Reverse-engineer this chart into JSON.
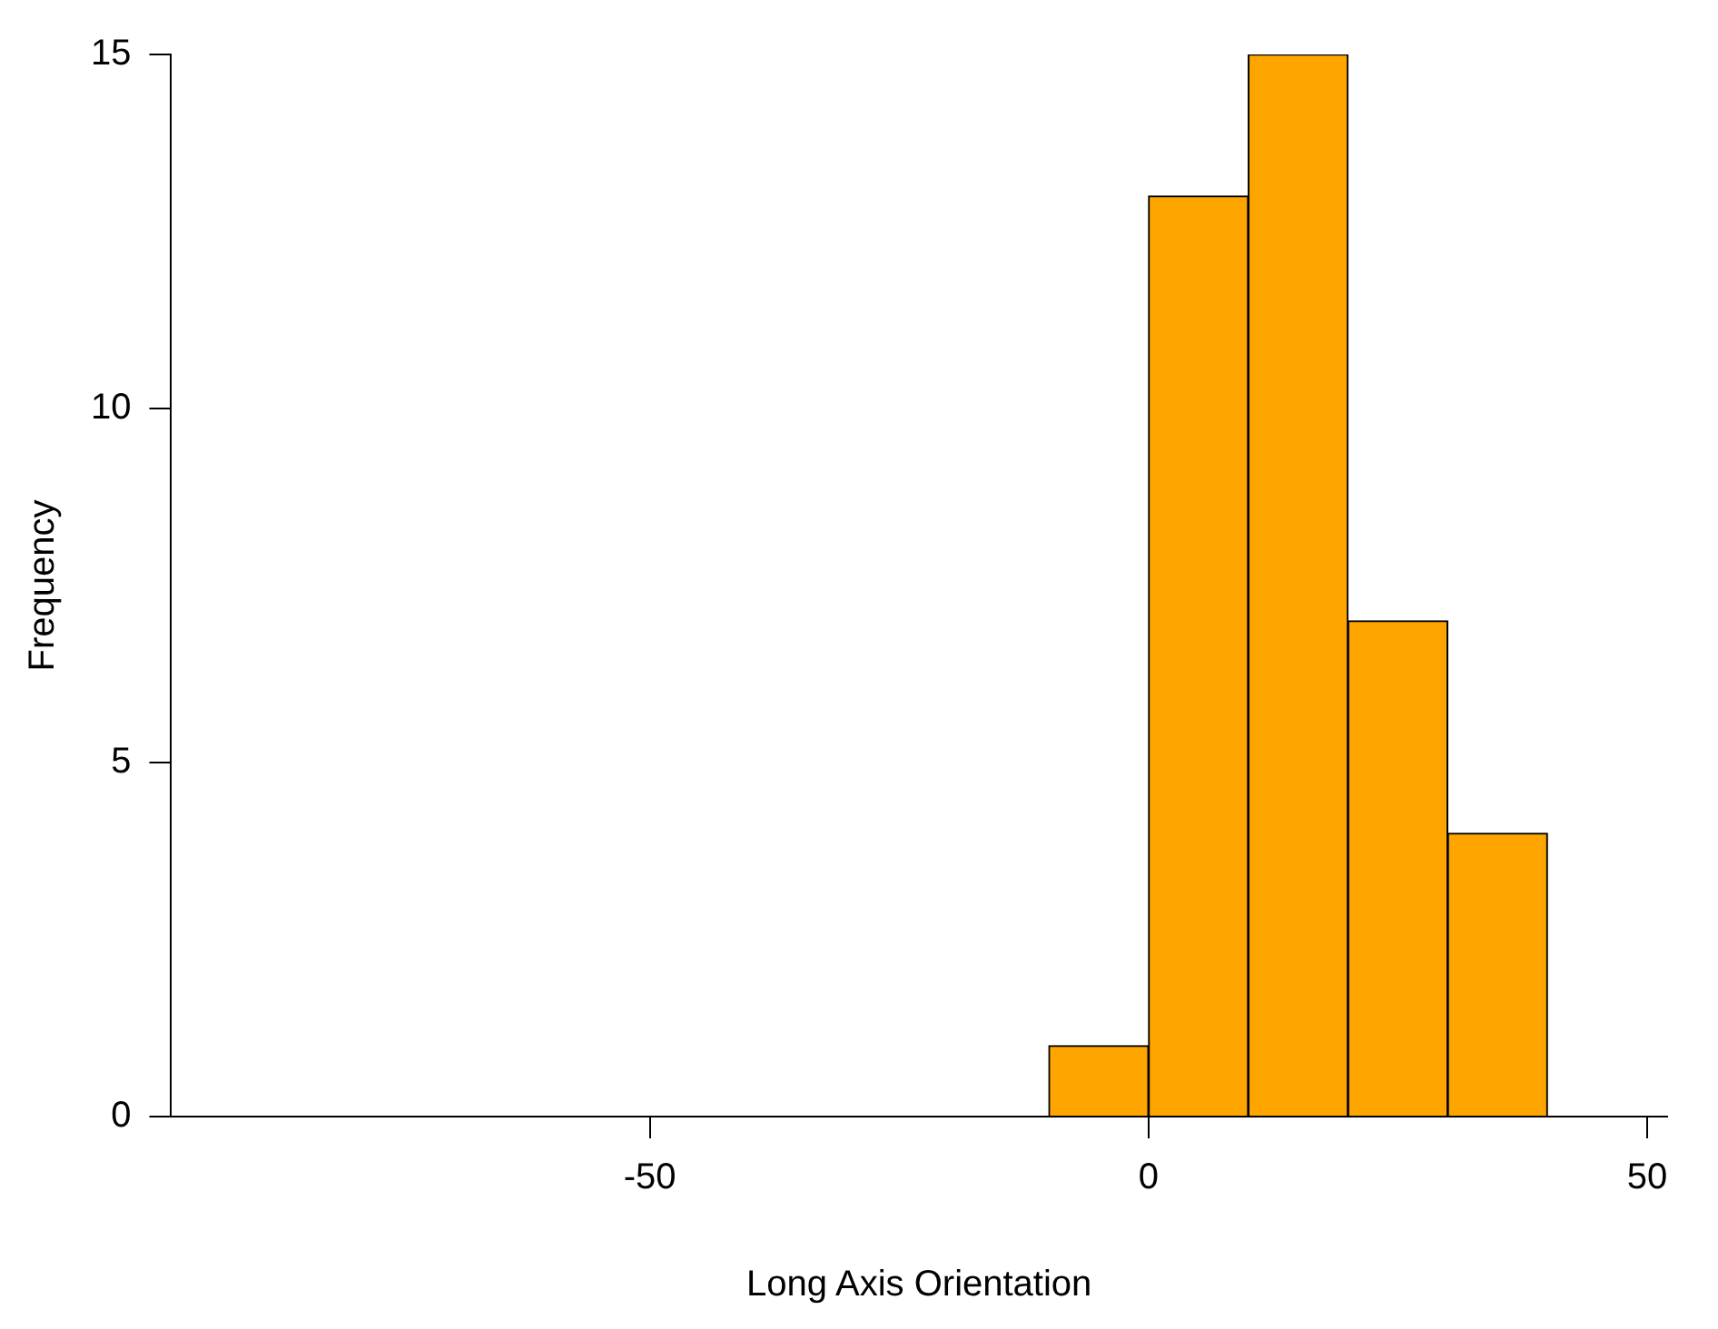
{
  "chart_data": {
    "type": "histogram",
    "xlabel": "Long Axis Orientation",
    "ylabel": "Frequency",
    "bins": [
      -10,
      0,
      10,
      20,
      30,
      40
    ],
    "values": [
      1,
      13,
      15,
      7,
      4
    ],
    "color": "#ffa500",
    "xlim": [
      -98,
      52
    ],
    "xticks": [
      -50,
      0,
      50
    ],
    "ylim": [
      0,
      15
    ],
    "yticks": [
      0,
      5,
      10,
      15
    ],
    "grid": false,
    "legend": false
  }
}
